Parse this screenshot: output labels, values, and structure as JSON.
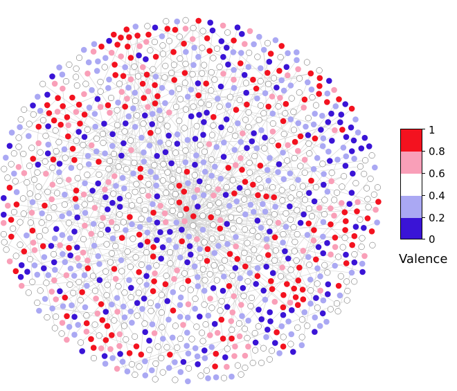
{
  "legend": {
    "title": "Valence",
    "ticks": [
      "1",
      "0.8",
      "0.6",
      "0.4",
      "0.2",
      "0"
    ],
    "bands": [
      {
        "range": "0.8-1",
        "color": "#f3121f"
      },
      {
        "range": "0.6-0.8",
        "color": "#f99fb8"
      },
      {
        "range": "0.4-0.6",
        "color": "#ffffff"
      },
      {
        "range": "0.2-0.4",
        "color": "#aaa8f3"
      },
      {
        "range": "0-0.2",
        "color": "#3a14d6"
      }
    ]
  },
  "colors": {
    "edge": "#cfcfcf",
    "node_outline": "#555555"
  }
}
